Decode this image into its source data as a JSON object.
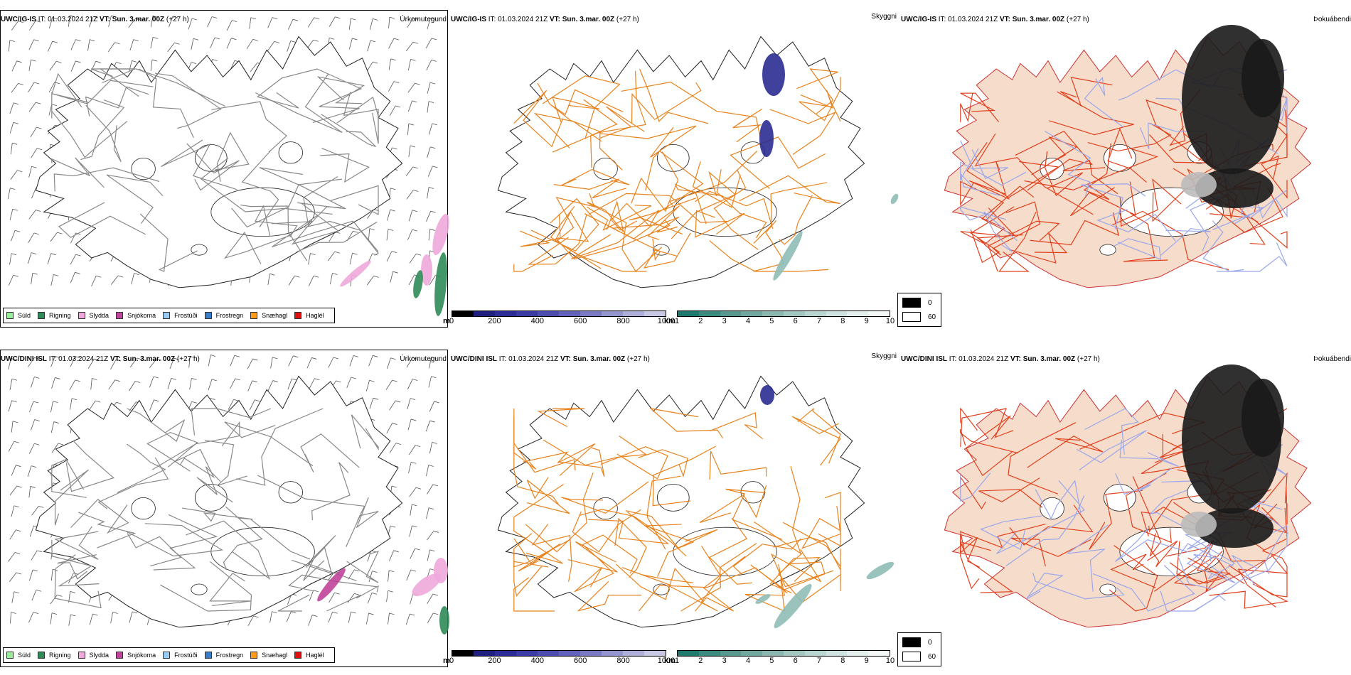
{
  "legend_items": [
    {
      "label": "Súld",
      "color": "#99ee99"
    },
    {
      "label": "Rigning",
      "color": "#2e8b57"
    },
    {
      "label": "Slydda",
      "color": "#f0a8dc"
    },
    {
      "label": "Snjókoma",
      "color": "#c0449a"
    },
    {
      "label": "Frostúði",
      "color": "#99ccf5"
    },
    {
      "label": "Frostregn",
      "color": "#3a7dc8"
    },
    {
      "label": "Snæhagl",
      "color": "#ff9a1a"
    },
    {
      "label": "Haglél",
      "color": "#e01010"
    }
  ],
  "ceiling_colorbar": {
    "unit": "m",
    "ticks": [
      "0",
      "200",
      "400",
      "600",
      "800",
      "1000"
    ],
    "colors": [
      "#000000",
      "#1f1f7f",
      "#2c2c99",
      "#3b3ba6",
      "#4d4db0",
      "#6262ba",
      "#7a7ac4",
      "#9494cf",
      "#aeaeda",
      "#c8c8e5"
    ]
  },
  "visibility_colorbar": {
    "unit": "km",
    "ticks": [
      "1",
      "2",
      "3",
      "4",
      "5",
      "6",
      "7",
      "8",
      "9",
      "10"
    ],
    "colors": [
      "#1e7a6e",
      "#3b8a80",
      "#57998f",
      "#70a8a0",
      "#8ab8b0",
      "#a2c7c1",
      "#b8d5d0",
      "#cee3df",
      "#e2efec",
      "#f3f8f7"
    ]
  },
  "fog_legend": [
    {
      "label": "0",
      "color": "#000000"
    },
    {
      "label": "60",
      "color": "#ffffff"
    }
  ],
  "rows": [
    {
      "model": "UWC/IG-IS",
      "it_label": "IT:",
      "it_value": "01.03.2024 21Z",
      "vt_label": "VT:",
      "vt_value": "Sun. 3.mar. 00Z",
      "lead": "(+27 h)",
      "panel_labels": [
        "Úrkomutegund",
        "Skyggni",
        "Þokuábendi"
      ]
    },
    {
      "model": "UWC/DINI ISL",
      "it_label": "IT:",
      "it_value": "01.03.2024 21Z",
      "vt_label": "VT:",
      "vt_value": "Sun. 3.mar. 00Z",
      "lead": "(+27 h)",
      "panel_labels": [
        "Úrkomutegund",
        "Skyggni",
        "Þokuábendi"
      ]
    }
  ]
}
